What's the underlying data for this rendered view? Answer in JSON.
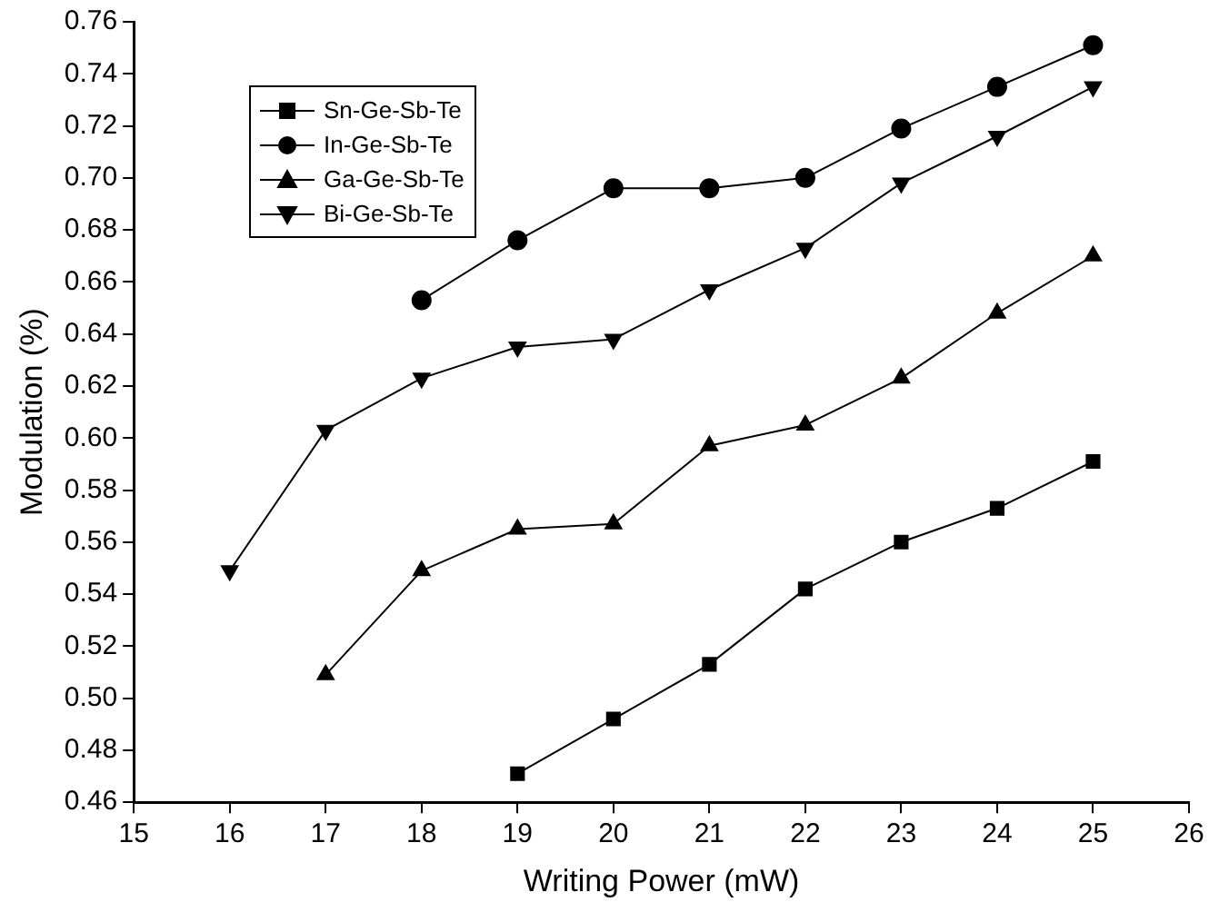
{
  "chart_data": {
    "type": "line",
    "xlabel": "Writing Power (mW)",
    "ylabel": "Modulation (%)",
    "xlim": [
      15,
      26
    ],
    "xticks": [
      15,
      16,
      17,
      18,
      19,
      20,
      21,
      22,
      23,
      24,
      25,
      26
    ],
    "ylim": [
      0.46,
      0.76
    ],
    "yticks": [
      0.46,
      0.48,
      {
        "value": 0.5,
        "label": "0.50"
      },
      0.52,
      0.54,
      0.56,
      0.58,
      {
        "value": 0.6,
        "label": "0.60"
      },
      0.62,
      0.64,
      0.66,
      0.68,
      {
        "value": 0.7,
        "label": "0.70"
      },
      0.72,
      0.74,
      0.76
    ],
    "grid": false,
    "legend": "top left",
    "line_style": "solid",
    "series": [
      {
        "name": "Sn-Ge-Sb-Te",
        "color": "#000000",
        "marker": "square",
        "x": [
          19,
          20,
          21,
          22,
          23,
          24,
          25
        ],
        "values": [
          0.471,
          0.492,
          0.513,
          0.542,
          0.56,
          0.573,
          0.591
        ]
      },
      {
        "name": "In-Ge-Sb-Te",
        "color": "#000000",
        "marker": "circle",
        "x": [
          18,
          19,
          20,
          21,
          22,
          23,
          24,
          25
        ],
        "values": [
          0.653,
          0.676,
          0.696,
          0.696,
          0.7,
          0.719,
          0.735,
          0.751
        ]
      },
      {
        "name": "Ga-Ge-Sb-Te",
        "color": "#000000",
        "marker": "triangle",
        "x": [
          17,
          18,
          19,
          20,
          21,
          22,
          23,
          24,
          25
        ],
        "values": [
          0.509,
          0.549,
          0.565,
          0.567,
          0.597,
          0.605,
          0.623,
          0.648,
          0.67
        ]
      },
      {
        "name": "Bi-Ge-Sb-Te",
        "color": "#000000",
        "marker": "triangle-down",
        "x": [
          16,
          17,
          18,
          19,
          20,
          21,
          22,
          23,
          24,
          25
        ],
        "values": [
          0.549,
          0.603,
          0.623,
          0.635,
          0.638,
          0.657,
          0.673,
          0.698,
          0.716,
          0.735
        ]
      }
    ]
  }
}
